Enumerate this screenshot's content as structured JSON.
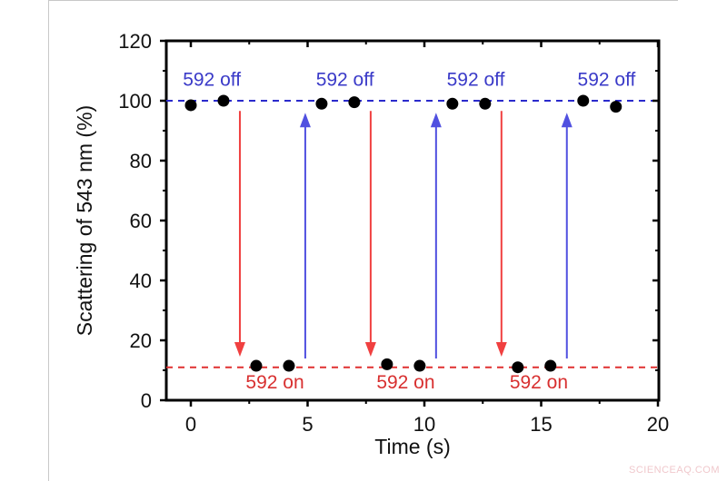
{
  "chart_data": {
    "type": "scatter",
    "title": "",
    "xlabel": "Time (s)",
    "ylabel": "Scattering of 543 nm (%)",
    "xlim": [
      -1,
      20
    ],
    "ylim": [
      0,
      120
    ],
    "xticks": [
      0,
      5,
      10,
      15,
      20
    ],
    "yticks": [
      0,
      20,
      40,
      60,
      80,
      100,
      120
    ],
    "grid": false,
    "legend": null,
    "series": [
      {
        "name": "Scattering",
        "color": "#000000",
        "x": [
          0.0,
          1.4,
          2.8,
          4.2,
          5.6,
          7.0,
          8.4,
          9.8,
          11.2,
          12.6,
          14.0,
          15.4,
          16.8,
          18.2
        ],
        "y": [
          98.5,
          100,
          11.5,
          11.5,
          99,
          99.5,
          12,
          11.5,
          99,
          99,
          11,
          11.5,
          100,
          98
        ]
      }
    ],
    "reference_lines": [
      {
        "name": "off-level",
        "y": 100,
        "color": "#2a2acc",
        "style": "dashed"
      },
      {
        "name": "on-level",
        "y": 11,
        "color": "#e03030",
        "style": "dashed"
      }
    ],
    "arrows": [
      {
        "direction": "down",
        "x": 2.1,
        "from": 99,
        "to": 11.5,
        "color": "#f04040"
      },
      {
        "direction": "up",
        "x": 4.9,
        "from": 11.5,
        "to": 99,
        "color": "#5050e0"
      },
      {
        "direction": "down",
        "x": 7.7,
        "from": 99,
        "to": 11.5,
        "color": "#f04040"
      },
      {
        "direction": "up",
        "x": 10.5,
        "from": 11.5,
        "to": 99,
        "color": "#5050e0"
      },
      {
        "direction": "down",
        "x": 13.3,
        "from": 99,
        "to": 11.5,
        "color": "#f04040"
      },
      {
        "direction": "up",
        "x": 16.1,
        "from": 11.5,
        "to": 99,
        "color": "#5050e0"
      }
    ],
    "annotations": [
      {
        "text": "592 off",
        "x": 0.9,
        "y": 105,
        "color": "#3a3ac8"
      },
      {
        "text": "592 off",
        "x": 6.6,
        "y": 105,
        "color": "#3a3ac8"
      },
      {
        "text": "592 off",
        "x": 12.2,
        "y": 105,
        "color": "#3a3ac8"
      },
      {
        "text": "592 off",
        "x": 17.8,
        "y": 105,
        "color": "#3a3ac8"
      },
      {
        "text": "592 on",
        "x": 3.6,
        "y": 4,
        "color": "#d83030"
      },
      {
        "text": "592 on",
        "x": 9.2,
        "y": 4,
        "color": "#d83030"
      },
      {
        "text": "592 on",
        "x": 14.9,
        "y": 4,
        "color": "#d83030"
      }
    ]
  },
  "labels": {
    "xlabel": "Time (s)",
    "ylabel": "Scattering of 543 nm (%)",
    "xticks": [
      "0",
      "5",
      "10",
      "15",
      "20"
    ],
    "yticks": [
      "0",
      "20",
      "40",
      "60",
      "80",
      "100",
      "120"
    ],
    "off_label": "592 off",
    "on_label": "592 on"
  },
  "watermark": "SCIENCEAQ.COM"
}
